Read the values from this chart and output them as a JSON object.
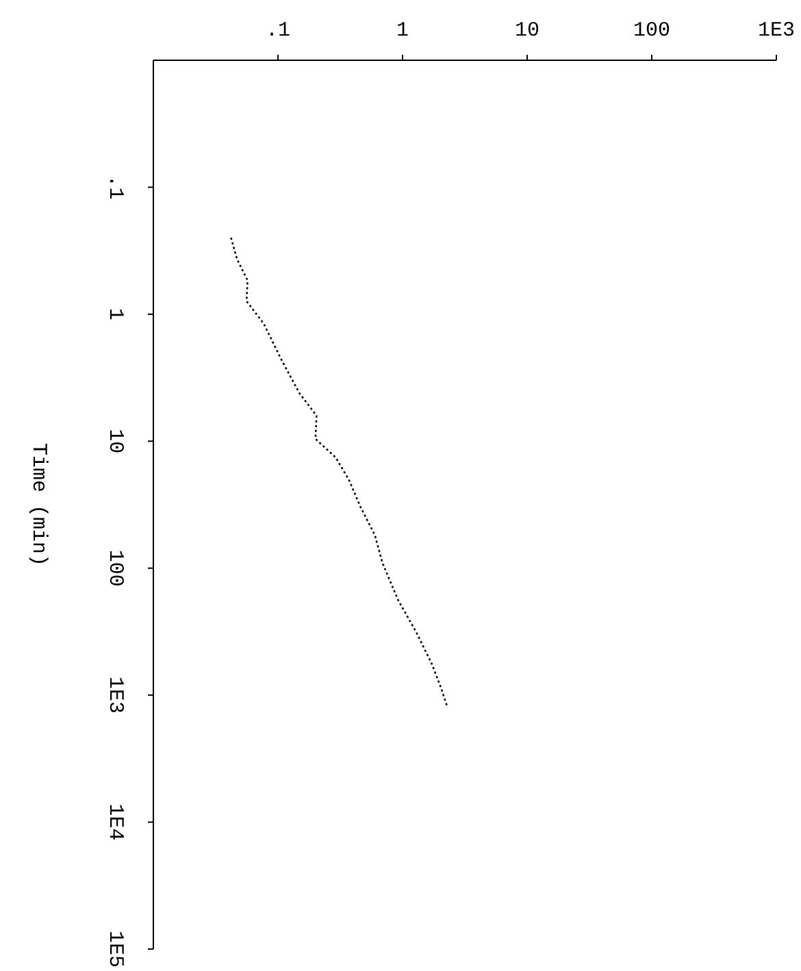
{
  "chart_data": {
    "type": "line",
    "ylabel": "Time (min)",
    "log": "xy",
    "grid": false,
    "legend": false,
    "marker": "none",
    "line_style": "dotted",
    "xlim": [
      0.01,
      1000
    ],
    "xticks": [
      {
        "value": 0.1,
        "label": ".1"
      },
      1,
      10,
      100,
      {
        "value": 1000,
        "label": "1E3"
      }
    ],
    "ylim": [
      100000,
      0.01
    ],
    "yticks": [
      {
        "value": 0.1,
        "label": ".1"
      },
      1,
      10,
      100,
      {
        "value": 1000,
        "label": "1E3"
      },
      {
        "value": 10000,
        "label": "1E4"
      },
      {
        "value": 100000,
        "label": "1E5"
      }
    ],
    "x": [
      0.042,
      0.047,
      0.057,
      0.056,
      0.077,
      0.107,
      0.149,
      0.204,
      0.2,
      0.29,
      0.37,
      0.46,
      0.6,
      0.69,
      0.92,
      1.29,
      1.72,
      2.03,
      2.3
    ],
    "series": [
      {
        "color": "#000000",
        "values": [
          0.25,
          0.37,
          0.54,
          0.79,
          1.19,
          2.3,
          4.2,
          6.3,
          9.6,
          13.4,
          20,
          33,
          55,
          91,
          178,
          320,
          570,
          870,
          1260
        ]
      }
    ]
  }
}
